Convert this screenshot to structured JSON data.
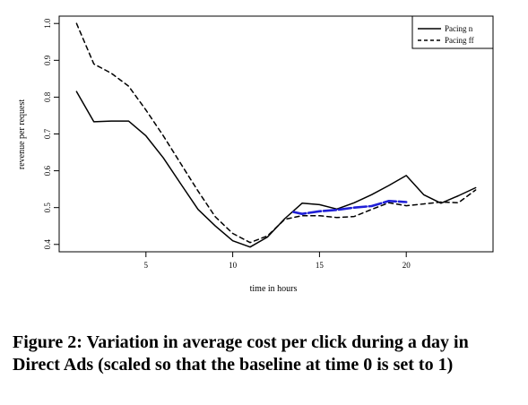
{
  "chart_data": {
    "type": "line",
    "xlabel": "time in hours",
    "ylabel": "revenue per request",
    "xlim": [
      0,
      25
    ],
    "ylim": [
      0.38,
      1.02
    ],
    "x_ticks": [
      "5",
      "10",
      "15",
      "20"
    ],
    "y_ticks": [
      "0.4",
      "0.5",
      "0.6",
      "0.7",
      "0.8",
      "0.9",
      "1.0"
    ],
    "x_tick_values": [
      5,
      10,
      15,
      20
    ],
    "y_tick_values": [
      0.4,
      0.5,
      0.6,
      0.7,
      0.8,
      0.9,
      1.0
    ],
    "legend_position": "top-right",
    "series": [
      {
        "name": "Pacing n",
        "style": "solid",
        "color": "#000000",
        "x": [
          1,
          2,
          3,
          4,
          5,
          6,
          7,
          8,
          9,
          10,
          11,
          12,
          13,
          14,
          15,
          16,
          17,
          18,
          19,
          20,
          21,
          22,
          23,
          24
        ],
        "y": [
          0.815,
          0.733,
          0.735,
          0.735,
          0.695,
          0.635,
          0.565,
          0.495,
          0.45,
          0.41,
          0.393,
          0.42,
          0.47,
          0.512,
          0.508,
          0.496,
          0.513,
          0.535,
          0.56,
          0.587,
          0.535,
          0.512,
          0.532,
          0.554
        ]
      },
      {
        "name": "Pacing ff",
        "style": "dashed",
        "color": "#000000",
        "x": [
          1,
          2,
          3,
          4,
          5,
          6,
          7,
          8,
          9,
          10,
          11,
          12,
          13,
          14,
          15,
          16,
          17,
          18,
          19,
          20,
          21,
          22,
          23,
          24
        ],
        "y": [
          1.0,
          0.89,
          0.865,
          0.83,
          0.765,
          0.695,
          0.62,
          0.545,
          0.475,
          0.43,
          0.405,
          0.423,
          0.468,
          0.478,
          0.478,
          0.473,
          0.476,
          0.495,
          0.513,
          0.505,
          0.51,
          0.515,
          0.513,
          0.548
        ]
      },
      {
        "style": "solid",
        "color": "#1f1fd6",
        "x": [
          13.5,
          14,
          15,
          16,
          17,
          18,
          19,
          20
        ],
        "y": [
          0.488,
          0.483,
          0.49,
          0.494,
          0.5,
          0.504,
          0.518,
          0.515
        ]
      }
    ]
  },
  "caption": "Figure 2: Variation in average cost per click during a day in Direct Ads (scaled so that the baseline at time 0 is set to 1)"
}
